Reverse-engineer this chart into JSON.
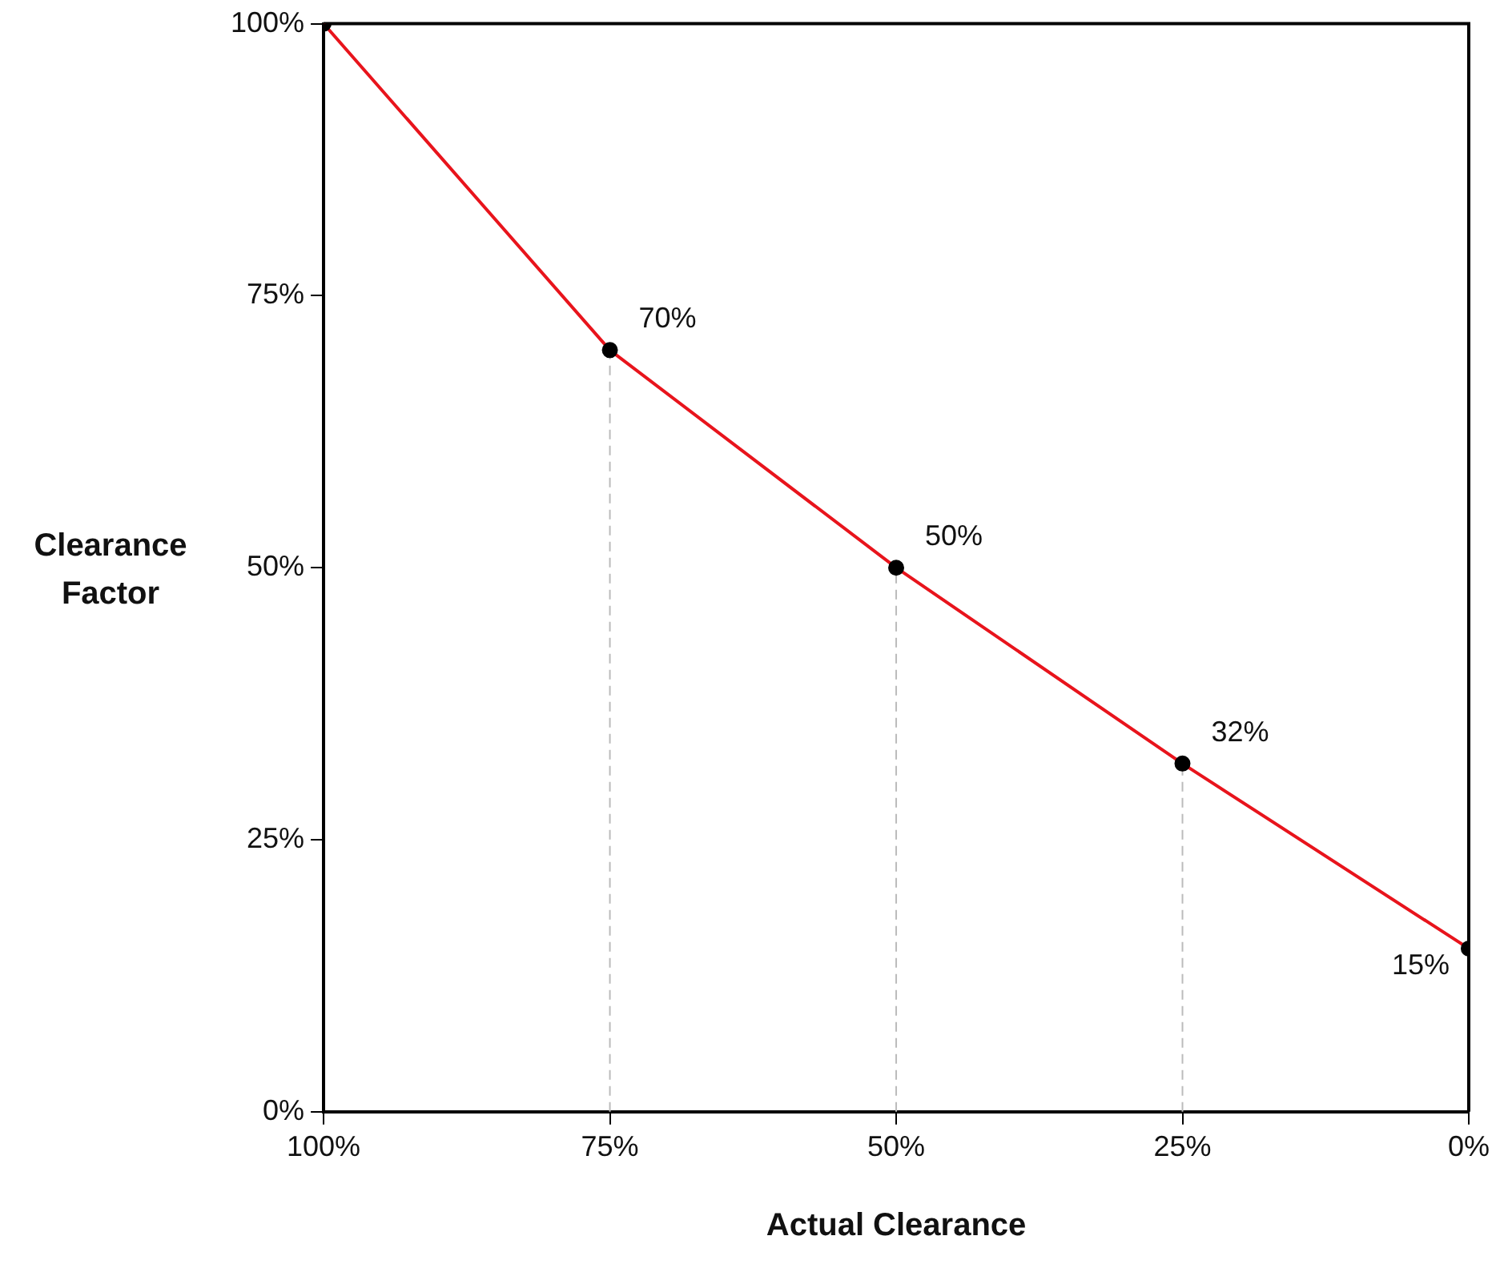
{
  "chart_data": {
    "type": "line",
    "xlabel": "Actual Clearance",
    "ylabel": "Clearance Factor",
    "x": [
      100,
      75,
      50,
      25,
      0
    ],
    "series": [
      {
        "color": "#e8141c",
        "values": [
          100,
          70,
          50,
          32,
          15
        ],
        "value_labels": [
          null,
          "70%",
          "50%",
          "32%",
          "15%"
        ]
      }
    ],
    "xlim": [
      100,
      0
    ],
    "ylim": [
      0,
      100
    ],
    "xticks": [
      {
        "value": 100,
        "label": "100%"
      },
      {
        "value": 75,
        "label": "75%"
      },
      {
        "value": 50,
        "label": "50%"
      },
      {
        "value": 25,
        "label": "25%"
      },
      {
        "value": 0,
        "label": "0%"
      }
    ],
    "yticks": [
      {
        "value": 0,
        "label": "0%"
      },
      {
        "value": 25,
        "label": "25%"
      },
      {
        "value": 50,
        "label": "50%"
      },
      {
        "value": 75,
        "label": "75%"
      },
      {
        "value": 100,
        "label": "100%"
      }
    ],
    "ref_lines": [
      {
        "axis": "x",
        "value": 75,
        "color": "#bbbbbb",
        "line_style": "dashed"
      },
      {
        "axis": "x",
        "value": 50,
        "color": "#bbbbbb",
        "line_style": "dashed"
      },
      {
        "axis": "x",
        "value": 25,
        "color": "#bbbbbb",
        "line_style": "dashed"
      }
    ],
    "marker": "circle",
    "line_style": "solid",
    "grid": false,
    "legend": false
  }
}
